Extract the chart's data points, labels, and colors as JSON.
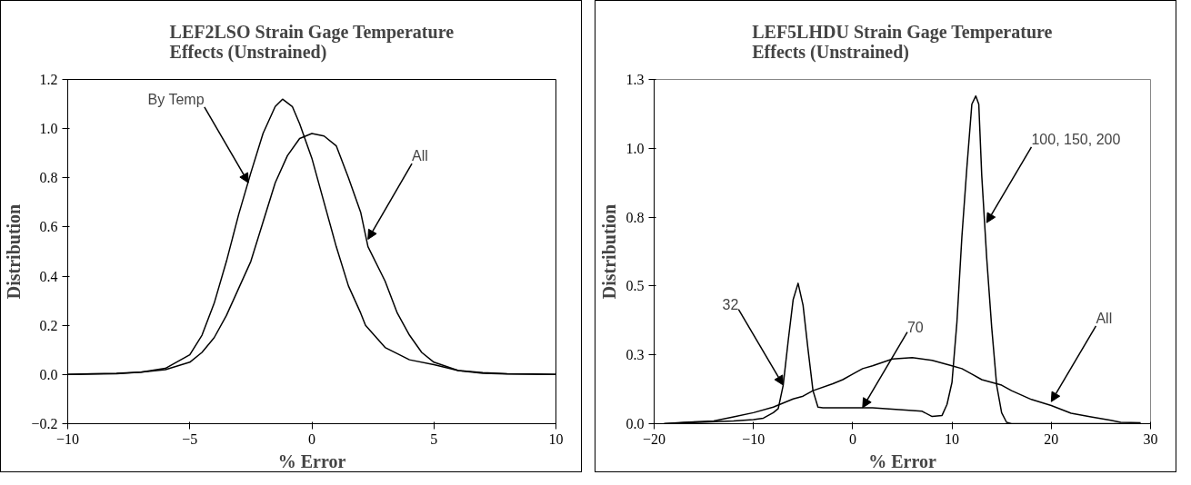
{
  "chart_data": [
    {
      "type": "line",
      "title": "LEF2LSO Strain Gage Temperature Effects (Unstrained)",
      "xlabel": "% Error",
      "ylabel": "Distribution",
      "xlim": [
        -10,
        10
      ],
      "xticks": [
        -10,
        -5,
        0,
        5,
        10
      ],
      "ylim": [
        -0.2,
        1.2
      ],
      "grid": false,
      "yticks": [
        -0.2,
        {
          "value": 0,
          "label": "0.0"
        },
        0.2,
        0.4,
        0.6,
        0.8,
        {
          "value": 1,
          "label": "1.0"
        },
        1.2
      ],
      "marker": "none",
      "line_style": "solid",
      "series": [
        {
          "color": "#000000",
          "x": [
            -10,
            -9,
            -8,
            -7,
            -6,
            -5,
            -4.5,
            -4,
            -3.5,
            -3,
            -2.5,
            -2,
            -1.5,
            -1.2,
            -0.8,
            -0.5,
            0,
            0.5,
            1,
            1.5,
            2,
            2.2,
            3,
            4,
            5,
            6,
            7,
            8,
            9,
            10
          ],
          "values": [
            0,
            0.003,
            0.005,
            0.01,
            0.025,
            0.08,
            0.16,
            0.29,
            0.46,
            0.65,
            0.82,
            0.98,
            1.09,
            1.12,
            1.09,
            1.02,
            0.88,
            0.7,
            0.52,
            0.36,
            0.25,
            0.2,
            0.11,
            0.06,
            0.04,
            0.016,
            0.008,
            0.003,
            0.002,
            0
          ]
        },
        {
          "color": "#000000",
          "x": [
            -10,
            -8,
            -7,
            -6,
            -5,
            -4.5,
            -4,
            -3.5,
            -3,
            -2.5,
            -2,
            -1.5,
            -1,
            -0.5,
            0,
            0.5,
            1,
            1.5,
            2,
            2.3,
            3,
            3.5,
            4,
            4.5,
            5,
            6,
            7,
            8,
            10
          ],
          "values": [
            0,
            0.003,
            0.01,
            0.02,
            0.05,
            0.09,
            0.15,
            0.24,
            0.35,
            0.46,
            0.62,
            0.78,
            0.89,
            0.96,
            0.98,
            0.97,
            0.93,
            0.8,
            0.66,
            0.52,
            0.38,
            0.25,
            0.16,
            0.09,
            0.05,
            0.016,
            0.005,
            0.002,
            0
          ]
        }
      ],
      "annotations": [
        {
          "text": "By Temp",
          "x": -2.6,
          "y": 0.78
        },
        {
          "text": "All",
          "x": 2.3,
          "y": 0.55
        }
      ]
    },
    {
      "type": "line",
      "title": "LEF5LHDU Strain Gage Temperature Effects (Unstrained)",
      "xlabel": "% Error",
      "ylabel": "Distribution",
      "xlim": [
        -20,
        30
      ],
      "xticks": [
        -20,
        -10,
        0,
        10,
        20,
        30
      ],
      "ylim": [
        0,
        1.25
      ],
      "yticks": [
        {
          "value": 0,
          "label": "0.0"
        },
        {
          "value": 0.25,
          "label": "0.3"
        },
        {
          "value": 0.5,
          "label": "0.5"
        },
        {
          "value": 0.75,
          "label": "0.8"
        },
        {
          "value": 1,
          "label": "1.0"
        },
        {
          "value": 1.25,
          "label": "1.3"
        }
      ],
      "grid": false,
      "marker": "none",
      "line_style": "solid",
      "series": [
        {
          "color": "#000000",
          "x": [
            -19,
            -17,
            -12,
            -10,
            -9,
            -8,
            -7.5,
            -7,
            -6.5,
            -6,
            -5.5,
            -5,
            -4.5,
            -4,
            -3.5,
            -3,
            0,
            2,
            5,
            7,
            8,
            9,
            9.5,
            10,
            10.5,
            11,
            11.5,
            12,
            12.4,
            12.7,
            13,
            13.5,
            14,
            14.5,
            15,
            15.5,
            16,
            29
          ],
          "values": [
            0,
            0.003,
            0.01,
            0.015,
            0.02,
            0.04,
            0.055,
            0.14,
            0.3,
            0.45,
            0.51,
            0.43,
            0.27,
            0.12,
            0.06,
            0.058,
            0.058,
            0.058,
            0.05,
            0.045,
            0.026,
            0.03,
            0.07,
            0.15,
            0.37,
            0.68,
            0.93,
            1.16,
            1.19,
            1.16,
            0.9,
            0.6,
            0.35,
            0.14,
            0.04,
            0.005,
            0,
            0
          ]
        },
        {
          "color": "#000000",
          "x": [
            -19,
            -17,
            -14,
            -12,
            -10,
            -8,
            -6,
            -5,
            -4,
            -2,
            -1,
            0,
            1,
            2,
            4,
            6,
            8,
            10,
            11,
            12,
            13,
            14,
            15,
            16,
            18,
            20,
            22,
            24,
            26,
            27,
            29
          ],
          "values": [
            0,
            0.005,
            0.01,
            0.025,
            0.04,
            0.06,
            0.09,
            0.1,
            0.12,
            0.145,
            0.16,
            0.18,
            0.2,
            0.21,
            0.235,
            0.24,
            0.23,
            0.21,
            0.2,
            0.18,
            0.16,
            0.15,
            0.14,
            0.12,
            0.088,
            0.066,
            0.038,
            0.025,
            0.012,
            0.005,
            0.003
          ]
        }
      ],
      "annotations": [
        {
          "text": "32",
          "x": -7,
          "y": 0.14
        },
        {
          "text": "70",
          "x": 1,
          "y": 0.058
        },
        {
          "text": "100, 150, 200",
          "x": 13.5,
          "y": 0.73
        },
        {
          "text": "All",
          "x": 20,
          "y": 0.08
        }
      ]
    }
  ]
}
